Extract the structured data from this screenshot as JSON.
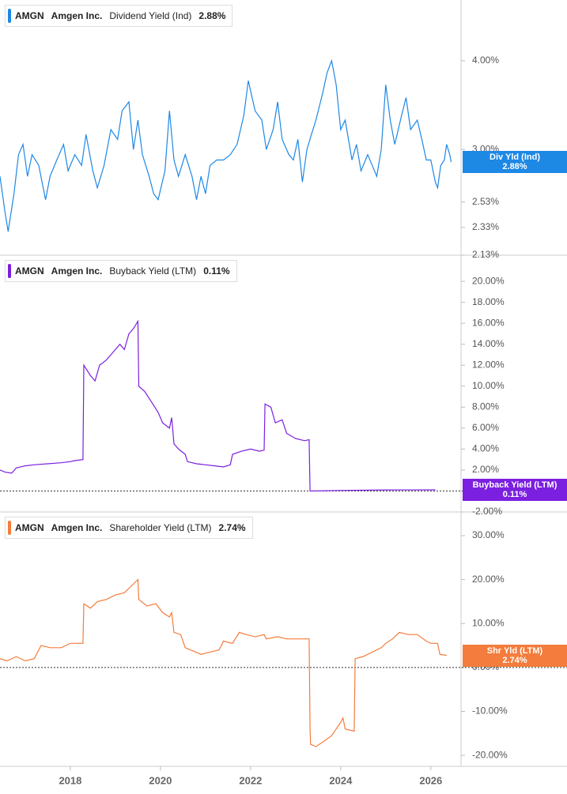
{
  "chart_data": [
    {
      "type": "line",
      "ticker": "AMGN",
      "company": "Amgen Inc.",
      "metric": "Dividend Yield (Ind)",
      "current_label": "2.88%",
      "badge_label": "Div Yld (Ind)",
      "log_scale": true,
      "zero_line": false,
      "x": [
        2016.44,
        2016.55,
        2016.62,
        2016.75,
        2016.85,
        2016.95,
        2017.05,
        2017.15,
        2017.3,
        2017.45,
        2017.55,
        2017.7,
        2017.85,
        2017.95,
        2018.1,
        2018.25,
        2018.35,
        2018.5,
        2018.6,
        2018.75,
        2018.9,
        2019.05,
        2019.15,
        2019.3,
        2019.4,
        2019.5,
        2019.6,
        2019.75,
        2019.85,
        2019.95,
        2020.1,
        2020.2,
        2020.3,
        2020.4,
        2020.55,
        2020.7,
        2020.8,
        2020.9,
        2021.0,
        2021.1,
        2021.25,
        2021.4,
        2021.55,
        2021.7,
        2021.85,
        2021.95,
        2022.1,
        2022.25,
        2022.35,
        2022.5,
        2022.6,
        2022.7,
        2022.85,
        2022.95,
        2023.05,
        2023.15,
        2023.25,
        2023.35,
        2023.45,
        2023.6,
        2023.7,
        2023.8,
        2023.9,
        2024.0,
        2024.1,
        2024.25,
        2024.35,
        2024.45,
        2024.6,
        2024.7,
        2024.8,
        2024.9,
        2025.0,
        2025.1,
        2025.2,
        2025.35,
        2025.45,
        2025.55,
        2025.7,
        2025.8,
        2025.9,
        2026.0,
        2026.1,
        2026.15,
        2026.22,
        2026.3,
        2026.35,
        2026.42,
        2026.45
      ],
      "xlim": [
        2016.44,
        2026.67
      ],
      "series": [
        {
          "name": "Dividend Yield (Ind)",
          "color": "#1e88e5",
          "values": [
            2.75,
            2.45,
            2.3,
            2.6,
            2.95,
            3.05,
            2.75,
            2.95,
            2.85,
            2.55,
            2.75,
            2.9,
            3.05,
            2.8,
            2.95,
            2.85,
            3.15,
            2.8,
            2.65,
            2.85,
            3.2,
            3.1,
            3.4,
            3.5,
            3.0,
            3.3,
            2.95,
            2.75,
            2.6,
            2.55,
            2.8,
            3.4,
            2.9,
            2.75,
            2.95,
            2.75,
            2.55,
            2.75,
            2.6,
            2.85,
            2.9,
            2.9,
            2.95,
            3.05,
            3.35,
            3.75,
            3.4,
            3.3,
            3.0,
            3.2,
            3.5,
            3.1,
            2.95,
            2.9,
            3.1,
            2.7,
            3.0,
            3.15,
            3.3,
            3.6,
            3.85,
            4.0,
            3.7,
            3.2,
            3.3,
            2.9,
            3.05,
            2.8,
            2.95,
            2.85,
            2.75,
            3.0,
            3.7,
            3.3,
            3.05,
            3.35,
            3.55,
            3.2,
            3.3,
            3.1,
            2.9,
            2.9,
            2.7,
            2.65,
            2.85,
            2.9,
            3.05,
            2.95,
            2.88
          ]
        }
      ],
      "ylim": [
        2.13,
        4.87
      ],
      "yticks": [
        {
          "value": 2.13,
          "label": "2.13%"
        },
        {
          "value": 2.33,
          "label": "2.33%"
        },
        {
          "value": 2.53,
          "label": "2.53%"
        },
        {
          "value": 3,
          "label": "3.00%"
        },
        {
          "value": 4,
          "label": "4.00%"
        }
      ]
    },
    {
      "type": "line",
      "ticker": "AMGN",
      "company": "Amgen Inc.",
      "metric": "Buyback Yield (LTM)",
      "current_label": "0.11%",
      "badge_label": "Buyback Yield (LTM)",
      "log_scale": false,
      "zero_line": true,
      "x": [
        2016.44,
        2016.55,
        2016.7,
        2016.8,
        2017.0,
        2017.2,
        2017.5,
        2017.8,
        2018.0,
        2018.1,
        2018.28,
        2018.3,
        2018.45,
        2018.55,
        2018.65,
        2018.8,
        2018.9,
        2019.0,
        2019.1,
        2019.2,
        2019.3,
        2019.4,
        2019.5,
        2019.52,
        2019.65,
        2019.8,
        2019.95,
        2020.05,
        2020.2,
        2020.25,
        2020.3,
        2020.4,
        2020.55,
        2020.6,
        2020.8,
        2021.0,
        2021.2,
        2021.4,
        2021.55,
        2021.6,
        2021.8,
        2022.0,
        2022.2,
        2022.3,
        2022.32,
        2022.45,
        2022.55,
        2022.7,
        2022.8,
        2023.0,
        2023.2,
        2023.3,
        2023.32,
        2024.0,
        2025.0,
        2026.1
      ],
      "xlim": [
        2016.44,
        2026.67
      ],
      "series": [
        {
          "name": "Buyback Yield (LTM)",
          "color": "#7b1fe0",
          "values": [
            2.0,
            1.8,
            1.7,
            2.2,
            2.4,
            2.5,
            2.6,
            2.7,
            2.8,
            2.9,
            3.0,
            12.0,
            11.0,
            10.5,
            12.0,
            12.5,
            13.0,
            13.5,
            14.0,
            13.5,
            15.0,
            15.5,
            16.2,
            10.0,
            9.5,
            8.5,
            7.5,
            6.5,
            6.0,
            7.0,
            4.5,
            4.0,
            3.5,
            2.8,
            2.6,
            2.5,
            2.4,
            2.3,
            2.5,
            3.5,
            3.8,
            4.0,
            3.8,
            3.9,
            8.3,
            8.0,
            6.5,
            6.8,
            5.5,
            5.0,
            4.8,
            4.9,
            0.0,
            0.05,
            0.1,
            0.11
          ]
        }
      ],
      "ylim": [
        -2.0,
        22.5
      ],
      "yticks": [
        {
          "value": -2,
          "label": "-2.00%"
        },
        {
          "value": 2,
          "label": "2.00%"
        },
        {
          "value": 4,
          "label": "4.00%"
        },
        {
          "value": 6,
          "label": "6.00%"
        },
        {
          "value": 8,
          "label": "8.00%"
        },
        {
          "value": 10,
          "label": "10.00%"
        },
        {
          "value": 12,
          "label": "12.00%"
        },
        {
          "value": 14,
          "label": "14.00%"
        },
        {
          "value": 16,
          "label": "16.00%"
        },
        {
          "value": 18,
          "label": "18.00%"
        },
        {
          "value": 20,
          "label": "20.00%"
        }
      ]
    },
    {
      "type": "line",
      "ticker": "AMGN",
      "company": "Amgen Inc.",
      "metric": "Shareholder Yield (LTM)",
      "current_label": "2.74%",
      "badge_label": "Shr Yld (LTM)",
      "log_scale": false,
      "zero_line": true,
      "x": [
        2016.44,
        2016.6,
        2016.8,
        2017.0,
        2017.2,
        2017.35,
        2017.55,
        2017.8,
        2018.0,
        2018.28,
        2018.3,
        2018.45,
        2018.6,
        2018.8,
        2019.0,
        2019.2,
        2019.35,
        2019.5,
        2019.52,
        2019.7,
        2019.9,
        2020.05,
        2020.2,
        2020.25,
        2020.3,
        2020.45,
        2020.55,
        2020.9,
        2021.1,
        2021.3,
        2021.4,
        2021.6,
        2021.75,
        2021.9,
        2022.1,
        2022.3,
        2022.35,
        2022.6,
        2022.8,
        2023.0,
        2023.3,
        2023.32,
        2023.33,
        2023.45,
        2023.6,
        2023.8,
        2024.0,
        2024.05,
        2024.1,
        2024.3,
        2024.32,
        2024.5,
        2024.7,
        2024.9,
        2025.0,
        2025.15,
        2025.3,
        2025.5,
        2025.7,
        2025.9,
        2026.0,
        2026.15,
        2026.2,
        2026.35
      ],
      "xlim": [
        2016.44,
        2026.67
      ],
      "series": [
        {
          "name": "Shareholder Yield (LTM)",
          "color": "#f47c3c",
          "values": [
            2.0,
            1.5,
            2.5,
            1.5,
            2.0,
            5.0,
            4.5,
            4.5,
            5.5,
            5.5,
            14.5,
            13.5,
            15.0,
            15.5,
            16.5,
            17.0,
            18.5,
            20.0,
            15.5,
            14.0,
            14.5,
            12.5,
            11.5,
            12.5,
            8.0,
            7.5,
            4.5,
            3.0,
            3.5,
            4.0,
            6.0,
            5.5,
            8.0,
            7.5,
            7.0,
            7.5,
            6.5,
            7.0,
            6.5,
            6.5,
            6.5,
            -14.0,
            -17.5,
            -18.0,
            -17.0,
            -15.5,
            -12.5,
            -11.5,
            -14.0,
            -14.5,
            2.0,
            2.5,
            3.5,
            4.5,
            5.5,
            6.5,
            8.0,
            7.5,
            7.5,
            6.0,
            5.5,
            5.5,
            3.0,
            2.74
          ]
        }
      ],
      "ylim": [
        -22.5,
        35.4
      ],
      "yticks": [
        {
          "value": -20,
          "label": "-20.00%"
        },
        {
          "value": -10,
          "label": "-10.00%"
        },
        {
          "value": 0,
          "label": "0.00%"
        },
        {
          "value": 10,
          "label": "10.00%"
        },
        {
          "value": 20,
          "label": "20.00%"
        },
        {
          "value": 30,
          "label": "30.00%"
        }
      ],
      "xticks": [
        2018,
        2020,
        2022,
        2024,
        2026
      ]
    }
  ]
}
